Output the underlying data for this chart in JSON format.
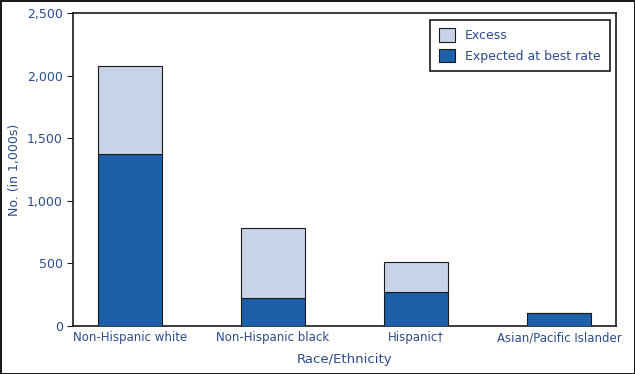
{
  "categories": [
    "Non-Hispanic white",
    "Non-Hispanic black",
    "Hispanic†",
    "Asian/Pacific Islander"
  ],
  "expected": [
    1375,
    225,
    270,
    100
  ],
  "excess": [
    700,
    555,
    240,
    0
  ],
  "bar_color_expected": "#1b60a8",
  "bar_color_excess": "#c8d3e8",
  "bar_edgecolor": "#1a1a1a",
  "bar_width": 0.45,
  "ylim": [
    0,
    2500
  ],
  "yticks": [
    0,
    500,
    1000,
    1500,
    2000,
    2500
  ],
  "ylabel": "No. (in 1,000s)",
  "xlabel": "Race/Ethnicity",
  "legend_labels": [
    "Excess",
    "Expected at best rate"
  ],
  "legend_colors": [
    "#c8d3e8",
    "#1b60a8"
  ],
  "background_color": "#ffffff",
  "spine_color": "#1a1a1a",
  "figure_border_color": "#1a1a1a"
}
